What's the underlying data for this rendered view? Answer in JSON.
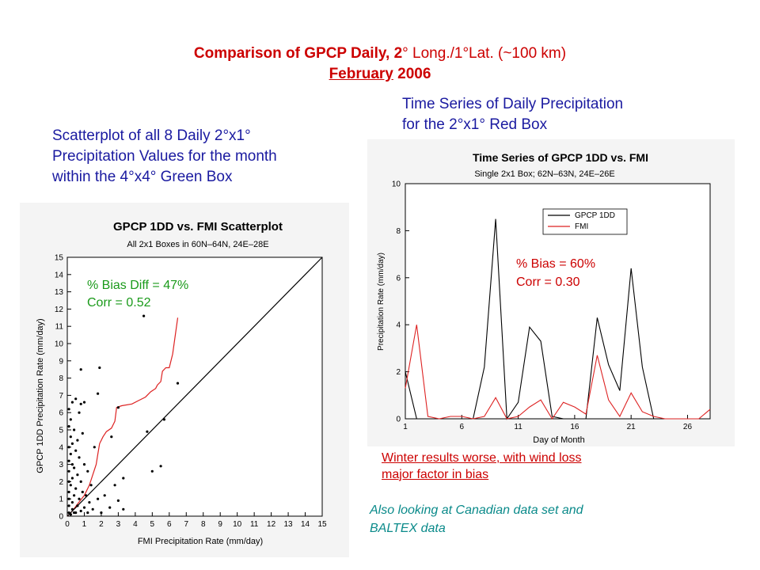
{
  "heading": {
    "line1_bold": "Comparison of GPCP Daily,",
    "line1_mid": "2",
    "line1_rest": "° Long./1°Lat. (~100 km)",
    "line2_month": "February",
    "line2_year": "2006"
  },
  "labels": {
    "scatter_desc": [
      "Scatterplot of all 8 Daily 2°x1°",
      "Precipitation Values for the month",
      "within the 4°x4° Green Box"
    ],
    "ts_desc": [
      "Time Series of Daily Precipitation",
      "for the 2°x1° Red Box"
    ]
  },
  "notes": {
    "winter": [
      "Winter results worse, with wind loss",
      "major factor in bias"
    ],
    "also": [
      "Also looking at Canadian data set and",
      "BALTEX data"
    ]
  },
  "colors": {
    "heading": "#cc0000",
    "label": "#1a1aa0",
    "scatter_annotation": "#1a9a1a",
    "ts_annotation": "#cc0000",
    "gpcp_line": "#000000",
    "fmi_line": "#dd2222",
    "note_teal": "#0a8a8a"
  },
  "chart_data": [
    {
      "type": "scatter",
      "title": "GPCP 1DD vs. FMI Scatterplot",
      "subtitle": "All 2x1 Boxes in 60N–64N, 24E–28E",
      "xlabel": "FMI Precipitation Rate (mm/day)",
      "ylabel": "GPCP 1DD Precipitation Rate (mm/day)",
      "xlim": [
        0,
        15
      ],
      "ylim": [
        0,
        15
      ],
      "xticks": [
        "0",
        "1",
        "2",
        "3",
        "4",
        "5",
        "6",
        "7",
        "8",
        "9",
        "10",
        "11",
        "12",
        "13",
        "14",
        "15"
      ],
      "yticks": [
        "0",
        "1",
        "2",
        "3",
        "4",
        "5",
        "6",
        "7",
        "8",
        "9",
        "10",
        "11",
        "12",
        "13",
        "14",
        "15"
      ],
      "annotation": [
        "% Bias Diff = 47%",
        "Corr = 0.52"
      ],
      "points": [
        [
          0.1,
          0.2
        ],
        [
          0.1,
          0.6
        ],
        [
          0.1,
          1.0
        ],
        [
          0.1,
          1.4
        ],
        [
          0.1,
          2.0
        ],
        [
          0.1,
          2.6
        ],
        [
          0.1,
          3.2
        ],
        [
          0.1,
          4.0
        ],
        [
          0.1,
          5.2
        ],
        [
          0.1,
          6.2
        ],
        [
          0.2,
          0.1
        ],
        [
          0.2,
          1.8
        ],
        [
          0.2,
          3.6
        ],
        [
          0.2,
          4.6
        ],
        [
          0.2,
          5.6
        ],
        [
          0.3,
          0.4
        ],
        [
          0.3,
          0.8
        ],
        [
          0.3,
          2.2
        ],
        [
          0.3,
          3.0
        ],
        [
          0.3,
          4.2
        ],
        [
          0.3,
          6.6
        ],
        [
          0.4,
          1.2
        ],
        [
          0.4,
          2.8
        ],
        [
          0.4,
          5.0
        ],
        [
          0.5,
          0.2
        ],
        [
          0.5,
          1.6
        ],
        [
          0.5,
          3.8
        ],
        [
          0.5,
          6.8
        ],
        [
          0.6,
          0.6
        ],
        [
          0.6,
          2.4
        ],
        [
          0.6,
          4.4
        ],
        [
          0.7,
          1.0
        ],
        [
          0.7,
          3.4
        ],
        [
          0.7,
          6.0
        ],
        [
          0.8,
          0.3
        ],
        [
          0.8,
          2.0
        ],
        [
          0.8,
          6.5
        ],
        [
          0.8,
          8.5
        ],
        [
          0.9,
          1.4
        ],
        [
          0.9,
          4.8
        ],
        [
          1.0,
          0.5
        ],
        [
          1.0,
          3.0
        ],
        [
          1.0,
          6.6
        ],
        [
          1.1,
          1.2
        ],
        [
          1.2,
          0.2
        ],
        [
          1.2,
          2.6
        ],
        [
          1.3,
          0.8
        ],
        [
          1.4,
          1.8
        ],
        [
          1.5,
          0.4
        ],
        [
          1.6,
          4.0
        ],
        [
          1.8,
          1.0
        ],
        [
          1.8,
          7.1
        ],
        [
          1.9,
          8.6
        ],
        [
          2.0,
          0.2
        ],
        [
          2.2,
          1.2
        ],
        [
          2.5,
          0.5
        ],
        [
          2.6,
          4.6
        ],
        [
          2.8,
          1.8
        ],
        [
          3.0,
          0.9
        ],
        [
          3.0,
          6.3
        ],
        [
          3.3,
          2.2
        ],
        [
          3.3,
          0.4
        ],
        [
          4.5,
          11.6
        ],
        [
          4.7,
          4.9
        ],
        [
          5.0,
          2.6
        ],
        [
          5.5,
          2.9
        ],
        [
          5.7,
          5.6
        ],
        [
          6.5,
          7.7
        ],
        [
          0.2,
          0.1
        ],
        [
          0.4,
          0.2
        ]
      ],
      "series": [
        {
          "name": "",
          "color": "#dd2222",
          "points": [
            [
              0,
              0
            ],
            [
              0.3,
              0.3
            ],
            [
              0.6,
              0.7
            ],
            [
              1.0,
              1.2
            ],
            [
              1.3,
              1.8
            ],
            [
              1.5,
              2.4
            ],
            [
              1.7,
              3.0
            ],
            [
              1.8,
              3.6
            ],
            [
              1.9,
              4.2
            ],
            [
              2.1,
              4.6
            ],
            [
              2.3,
              4.9
            ],
            [
              2.6,
              5.1
            ],
            [
              2.8,
              5.5
            ],
            [
              2.9,
              6.3
            ],
            [
              3.2,
              6.4
            ],
            [
              3.8,
              6.5
            ],
            [
              4.2,
              6.7
            ],
            [
              4.6,
              6.9
            ],
            [
              4.9,
              7.2
            ],
            [
              5.2,
              7.4
            ],
            [
              5.3,
              7.6
            ],
            [
              5.5,
              7.8
            ],
            [
              5.6,
              8.4
            ],
            [
              5.8,
              8.6
            ],
            [
              6.0,
              8.6
            ],
            [
              6.2,
              9.4
            ],
            [
              6.5,
              11.5
            ]
          ]
        },
        {
          "name": "",
          "color": "#000000",
          "points": [
            [
              0,
              0
            ],
            [
              15,
              15
            ]
          ]
        }
      ]
    },
    {
      "type": "line",
      "title": "Time Series of GPCP 1DD vs. FMI",
      "subtitle": "Single 2x1 Box; 62N–63N, 24E–26E",
      "xlabel": "Day of Month",
      "ylabel": "Precipitation Rate (mm/day)",
      "xlim": [
        1,
        28
      ],
      "ylim": [
        0,
        10
      ],
      "xticks": [
        "1",
        "6",
        "11",
        "16",
        "21",
        "26"
      ],
      "yticks": [
        "0",
        "2",
        "4",
        "6",
        "8",
        "10"
      ],
      "annotation": [
        "% Bias = 60%",
        "Corr = 0.30"
      ],
      "x": [
        1,
        2,
        3,
        4,
        5,
        6,
        7,
        8,
        9,
        10,
        11,
        12,
        13,
        14,
        15,
        16,
        17,
        18,
        19,
        20,
        21,
        22,
        23,
        24,
        25,
        26,
        27,
        28
      ],
      "series": [
        {
          "name": "GPCP 1DD",
          "color": "#000000",
          "values": [
            2.0,
            0.0,
            0.0,
            0.0,
            0.0,
            0.0,
            0.0,
            2.2,
            8.5,
            0.0,
            0.7,
            3.9,
            3.3,
            0.1,
            0.0,
            0.0,
            0.0,
            4.3,
            2.3,
            1.2,
            6.4,
            2.2,
            0.0,
            0.0,
            0.0,
            0.0,
            0.0,
            0.0
          ]
        },
        {
          "name": "FMI",
          "color": "#dd2222",
          "values": [
            1.3,
            4.0,
            0.1,
            0.0,
            0.1,
            0.1,
            0.0,
            0.1,
            0.9,
            0.0,
            0.1,
            0.5,
            0.8,
            0.0,
            0.7,
            0.5,
            0.2,
            2.7,
            0.8,
            0.1,
            1.1,
            0.3,
            0.1,
            0.0,
            0.0,
            0.0,
            0.0,
            0.4
          ]
        }
      ],
      "legend": "top-right"
    }
  ]
}
